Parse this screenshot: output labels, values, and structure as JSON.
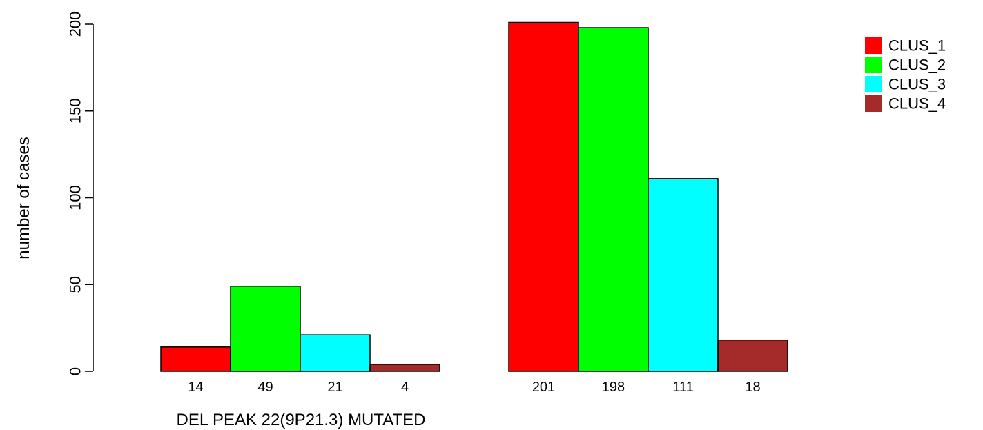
{
  "chart_data": {
    "type": "bar",
    "layout": "grouped",
    "xlabel": "DEL PEAK 22(9P21.3) MUTATED",
    "ylabel": "number of cases",
    "ylim": [
      0,
      200
    ],
    "yticks": [
      0,
      50,
      100,
      150,
      200
    ],
    "grid": false,
    "legend_position": "top-right",
    "groups": [
      {
        "values": [
          14,
          49,
          21,
          4
        ],
        "labels": [
          "14",
          "49",
          "21",
          "4"
        ]
      },
      {
        "values": [
          201,
          198,
          111,
          18
        ],
        "labels": [
          "201",
          "198",
          "111",
          "18"
        ]
      }
    ],
    "series": [
      {
        "name": "CLUS_1",
        "color": "#ff0000"
      },
      {
        "name": "CLUS_2",
        "color": "#00ff00"
      },
      {
        "name": "CLUS_3",
        "color": "#00ffff"
      },
      {
        "name": "CLUS_4",
        "color": "#a52a2a"
      }
    ]
  }
}
